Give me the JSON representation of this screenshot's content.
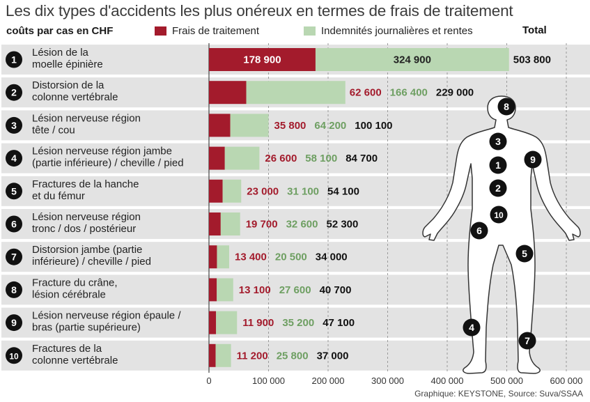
{
  "title": "Les dix types d'accidents les plus onéreux en termes de frais de traitement",
  "subtitle": "coûts par cas en CHF",
  "legend": {
    "treatment": "Frais de traitement",
    "indemnity": "Indemnités journalières et rentes",
    "total": "Total"
  },
  "colors": {
    "treatment": "#a31b2c",
    "indemnity": "#b9d7b2",
    "indemnity_text": "#6e9f62",
    "total_text": "#111111",
    "row_bg": "#e3e3e3",
    "badge": "#111111"
  },
  "credit": "Graphique: KEYSTONE, Source: Suva/SSAA",
  "chart_data": {
    "type": "bar",
    "stacked": true,
    "orientation": "horizontal",
    "title": "Les dix types d'accidents les plus onéreux en termes de frais de traitement",
    "subtitle": "coûts par cas en CHF",
    "xlim": [
      0,
      600000
    ],
    "x_ticks": [
      0,
      100000,
      200000,
      300000,
      400000,
      500000,
      600000
    ],
    "x_tick_labels": [
      "0",
      "100 000",
      "200 000",
      "300 000",
      "400 000",
      "500 000",
      "600 000"
    ],
    "grid": "vertical dashed",
    "legend_position": "top",
    "categories": [
      {
        "rank": "1",
        "lines": [
          "Lésion de la",
          "moelle épinière"
        ]
      },
      {
        "rank": "2",
        "lines": [
          "Distorsion de la",
          "colonne vertébrale"
        ]
      },
      {
        "rank": "3",
        "lines": [
          "Lésion nerveuse région",
          "tête / cou"
        ]
      },
      {
        "rank": "4",
        "lines": [
          "Lésion nerveuse région jambe",
          "(partie inférieure) / cheville / pied"
        ]
      },
      {
        "rank": "5",
        "lines": [
          "Fractures de la hanche",
          "et du fémur"
        ]
      },
      {
        "rank": "6",
        "lines": [
          "Lésion nerveuse région",
          "tronc / dos / postérieur"
        ]
      },
      {
        "rank": "7",
        "lines": [
          "Distorsion jambe (partie",
          "inférieure) / cheville / pied"
        ]
      },
      {
        "rank": "8",
        "lines": [
          "Fracture du crâne,",
          "lésion cérébrale"
        ]
      },
      {
        "rank": "9",
        "lines": [
          "Lésion nerveuse région épaule /",
          "bras (partie supérieure)"
        ]
      },
      {
        "rank": "10",
        "lines": [
          "Fractures de la",
          "colonne vertébrale"
        ]
      }
    ],
    "series": [
      {
        "name": "Frais de traitement",
        "values": [
          178900,
          62600,
          35800,
          26600,
          23000,
          19700,
          13400,
          13100,
          11900,
          11200
        ],
        "labels": [
          "178 900",
          "62 600",
          "35 800",
          "26 600",
          "23 000",
          "19 700",
          "13 400",
          "13 100",
          "11 900",
          "11 200"
        ]
      },
      {
        "name": "Indemnités journalières et rentes",
        "values": [
          324900,
          166400,
          64200,
          58100,
          31100,
          32600,
          20500,
          27600,
          35200,
          25800
        ],
        "labels": [
          "324 900",
          "166 400",
          "64 200",
          "58 100",
          "31 100",
          "32 600",
          "20 500",
          "27 600",
          "35 200",
          "25 800"
        ]
      }
    ],
    "totals": [
      503800,
      229000,
      100100,
      84700,
      54100,
      52300,
      34000,
      40700,
      47100,
      37000
    ],
    "total_labels": [
      "503 800",
      "229 000",
      "100 100",
      "84 700",
      "54 100",
      "52 300",
      "34 000",
      "40 700",
      "47 100",
      "37 000"
    ]
  },
  "body_markers": [
    "8",
    "3",
    "9",
    "1",
    "2",
    "10",
    "6",
    "5",
    "4",
    "7"
  ]
}
